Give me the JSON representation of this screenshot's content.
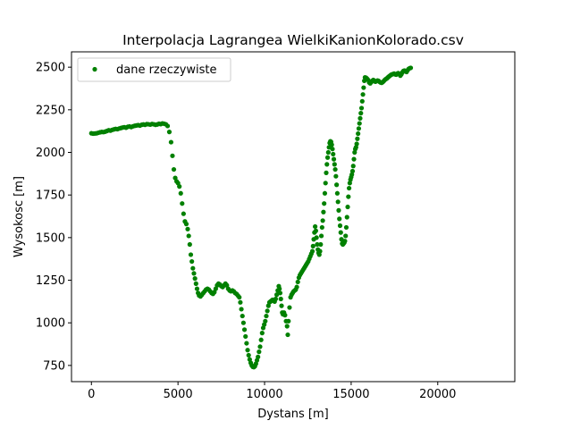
{
  "chart_data": {
    "type": "scatter",
    "title": "Interpolacja Lagrangea WielkiKanionKolorado.csv",
    "xlabel": "Dystans [m]",
    "ylabel": "Wysokosc [m]",
    "xlim": [
      -1150,
      24450
    ],
    "ylim": [
      655,
      2590
    ],
    "xticks": [
      0,
      5000,
      10000,
      15000,
      20000
    ],
    "yticks": [
      750,
      1000,
      1250,
      1500,
      1750,
      2000,
      2250,
      2500
    ],
    "grid": false,
    "legend_position": "upper-left",
    "marker_color": "#008000",
    "series": [
      {
        "name": "dane rzeczywiste",
        "color": "#008000",
        "points": [
          [
            0,
            2112
          ],
          [
            100,
            2110
          ],
          [
            200,
            2111
          ],
          [
            300,
            2112
          ],
          [
            400,
            2115
          ],
          [
            500,
            2118
          ],
          [
            600,
            2120
          ],
          [
            700,
            2119
          ],
          [
            800,
            2122
          ],
          [
            900,
            2126
          ],
          [
            1000,
            2130
          ],
          [
            1100,
            2128
          ],
          [
            1200,
            2132
          ],
          [
            1300,
            2135
          ],
          [
            1400,
            2138
          ],
          [
            1500,
            2136
          ],
          [
            1600,
            2140
          ],
          [
            1700,
            2143
          ],
          [
            1800,
            2146
          ],
          [
            1900,
            2148
          ],
          [
            2000,
            2145
          ],
          [
            2100,
            2150
          ],
          [
            2200,
            2152
          ],
          [
            2300,
            2149
          ],
          [
            2400,
            2153
          ],
          [
            2500,
            2156
          ],
          [
            2600,
            2158
          ],
          [
            2700,
            2160
          ],
          [
            2800,
            2157
          ],
          [
            2900,
            2162
          ],
          [
            3000,
            2164
          ],
          [
            3100,
            2162
          ],
          [
            3200,
            2166
          ],
          [
            3300,
            2165
          ],
          [
            3400,
            2163
          ],
          [
            3500,
            2167
          ],
          [
            3600,
            2165
          ],
          [
            3700,
            2162
          ],
          [
            3800,
            2164
          ],
          [
            3900,
            2168
          ],
          [
            4000,
            2166
          ],
          [
            4100,
            2170
          ],
          [
            4200,
            2168
          ],
          [
            4300,
            2165
          ],
          [
            4400,
            2155
          ],
          [
            4500,
            2120
          ],
          [
            4600,
            2060
          ],
          [
            4680,
            1980
          ],
          [
            4760,
            1900
          ],
          [
            4840,
            1850
          ],
          [
            4920,
            1830
          ],
          [
            5000,
            1820
          ],
          [
            5080,
            1800
          ],
          [
            5160,
            1760
          ],
          [
            5240,
            1700
          ],
          [
            5320,
            1640
          ],
          [
            5400,
            1595
          ],
          [
            5480,
            1580
          ],
          [
            5560,
            1550
          ],
          [
            5620,
            1510
          ],
          [
            5680,
            1460
          ],
          [
            5740,
            1400
          ],
          [
            5800,
            1360
          ],
          [
            5860,
            1320
          ],
          [
            5920,
            1290
          ],
          [
            5980,
            1260
          ],
          [
            6040,
            1230
          ],
          [
            6100,
            1200
          ],
          [
            6160,
            1175
          ],
          [
            6220,
            1160
          ],
          [
            6300,
            1155
          ],
          [
            6380,
            1165
          ],
          [
            6460,
            1175
          ],
          [
            6540,
            1185
          ],
          [
            6620,
            1195
          ],
          [
            6700,
            1200
          ],
          [
            6780,
            1195
          ],
          [
            6860,
            1185
          ],
          [
            6940,
            1175
          ],
          [
            7020,
            1170
          ],
          [
            7100,
            1180
          ],
          [
            7180,
            1200
          ],
          [
            7260,
            1220
          ],
          [
            7340,
            1230
          ],
          [
            7420,
            1225
          ],
          [
            7500,
            1215
          ],
          [
            7580,
            1210
          ],
          [
            7660,
            1220
          ],
          [
            7740,
            1230
          ],
          [
            7820,
            1220
          ],
          [
            7900,
            1200
          ],
          [
            7980,
            1190
          ],
          [
            8060,
            1185
          ],
          [
            8140,
            1190
          ],
          [
            8220,
            1185
          ],
          [
            8300,
            1175
          ],
          [
            8380,
            1170
          ],
          [
            8460,
            1160
          ],
          [
            8540,
            1150
          ],
          [
            8600,
            1120
          ],
          [
            8660,
            1080
          ],
          [
            8720,
            1040
          ],
          [
            8780,
            1000
          ],
          [
            8840,
            960
          ],
          [
            8900,
            920
          ],
          [
            8960,
            880
          ],
          [
            9020,
            840
          ],
          [
            9080,
            810
          ],
          [
            9140,
            785
          ],
          [
            9200,
            765
          ],
          [
            9260,
            750
          ],
          [
            9320,
            742
          ],
          [
            9380,
            740
          ],
          [
            9440,
            745
          ],
          [
            9500,
            760
          ],
          [
            9560,
            780
          ],
          [
            9620,
            800
          ],
          [
            9680,
            830
          ],
          [
            9740,
            860
          ],
          [
            9800,
            900
          ],
          [
            9860,
            940
          ],
          [
            9920,
            970
          ],
          [
            9980,
            990
          ],
          [
            10040,
            1010
          ],
          [
            10100,
            1040
          ],
          [
            10160,
            1070
          ],
          [
            10220,
            1100
          ],
          [
            10280,
            1120
          ],
          [
            10340,
            1125
          ],
          [
            10400,
            1130
          ],
          [
            10460,
            1135
          ],
          [
            10520,
            1130
          ],
          [
            10580,
            1125
          ],
          [
            10640,
            1140
          ],
          [
            10700,
            1165
          ],
          [
            10760,
            1190
          ],
          [
            10820,
            1215
          ],
          [
            10860,
            1200
          ],
          [
            10900,
            1175
          ],
          [
            10940,
            1140
          ],
          [
            10980,
            1100
          ],
          [
            11020,
            1060
          ],
          [
            11060,
            1050
          ],
          [
            11120,
            1060
          ],
          [
            11180,
            1045
          ],
          [
            11240,
            1010
          ],
          [
            11300,
            980
          ],
          [
            11340,
            930
          ],
          [
            11380,
            1010
          ],
          [
            11440,
            1090
          ],
          [
            11500,
            1150
          ],
          [
            11560,
            1165
          ],
          [
            11620,
            1175
          ],
          [
            11680,
            1185
          ],
          [
            11740,
            1190
          ],
          [
            11800,
            1195
          ],
          [
            11860,
            1210
          ],
          [
            11920,
            1240
          ],
          [
            11980,
            1265
          ],
          [
            12040,
            1280
          ],
          [
            12100,
            1290
          ],
          [
            12160,
            1300
          ],
          [
            12220,
            1310
          ],
          [
            12280,
            1320
          ],
          [
            12340,
            1330
          ],
          [
            12400,
            1340
          ],
          [
            12460,
            1350
          ],
          [
            12520,
            1360
          ],
          [
            12580,
            1375
          ],
          [
            12640,
            1390
          ],
          [
            12700,
            1405
          ],
          [
            12760,
            1420
          ],
          [
            12800,
            1450
          ],
          [
            12840,
            1490
          ],
          [
            12880,
            1530
          ],
          [
            12920,
            1565
          ],
          [
            12960,
            1540
          ],
          [
            13000,
            1500
          ],
          [
            13040,
            1460
          ],
          [
            13080,
            1430
          ],
          [
            13120,
            1410
          ],
          [
            13160,
            1400
          ],
          [
            13200,
            1420
          ],
          [
            13240,
            1460
          ],
          [
            13280,
            1510
          ],
          [
            13320,
            1560
          ],
          [
            13360,
            1600
          ],
          [
            13400,
            1650
          ],
          [
            13440,
            1700
          ],
          [
            13480,
            1760
          ],
          [
            13520,
            1820
          ],
          [
            13560,
            1880
          ],
          [
            13600,
            1930
          ],
          [
            13640,
            1970
          ],
          [
            13680,
            2000
          ],
          [
            13720,
            2030
          ],
          [
            13760,
            2055
          ],
          [
            13800,
            2065
          ],
          [
            13840,
            2062
          ],
          [
            13880,
            2045
          ],
          [
            13920,
            2020
          ],
          [
            13960,
            1990
          ],
          [
            14000,
            1960
          ],
          [
            14040,
            1930
          ],
          [
            14080,
            1900
          ],
          [
            14120,
            1860
          ],
          [
            14160,
            1810
          ],
          [
            14200,
            1760
          ],
          [
            14240,
            1710
          ],
          [
            14280,
            1660
          ],
          [
            14320,
            1610
          ],
          [
            14360,
            1570
          ],
          [
            14400,
            1530
          ],
          [
            14440,
            1490
          ],
          [
            14480,
            1465
          ],
          [
            14520,
            1460
          ],
          [
            14560,
            1465
          ],
          [
            14600,
            1470
          ],
          [
            14640,
            1480
          ],
          [
            14680,
            1510
          ],
          [
            14720,
            1560
          ],
          [
            14760,
            1620
          ],
          [
            14800,
            1680
          ],
          [
            14840,
            1740
          ],
          [
            14880,
            1790
          ],
          [
            14920,
            1820
          ],
          [
            14960,
            1840
          ],
          [
            15000,
            1855
          ],
          [
            15040,
            1870
          ],
          [
            15080,
            1890
          ],
          [
            15120,
            1920
          ],
          [
            15160,
            1960
          ],
          [
            15200,
            2000
          ],
          [
            15240,
            2020
          ],
          [
            15280,
            2030
          ],
          [
            15320,
            2050
          ],
          [
            15360,
            2080
          ],
          [
            15400,
            2110
          ],
          [
            15440,
            2140
          ],
          [
            15480,
            2170
          ],
          [
            15520,
            2200
          ],
          [
            15560,
            2230
          ],
          [
            15600,
            2260
          ],
          [
            15640,
            2300
          ],
          [
            15680,
            2340
          ],
          [
            15720,
            2380
          ],
          [
            15760,
            2420
          ],
          [
            15800,
            2440
          ],
          [
            15860,
            2438
          ],
          [
            15920,
            2432
          ],
          [
            15980,
            2425
          ],
          [
            16040,
            2410
          ],
          [
            16100,
            2405
          ],
          [
            16160,
            2412
          ],
          [
            16220,
            2420
          ],
          [
            16280,
            2425
          ],
          [
            16340,
            2420
          ],
          [
            16400,
            2415
          ],
          [
            16460,
            2418
          ],
          [
            16520,
            2422
          ],
          [
            16580,
            2420
          ],
          [
            16640,
            2414
          ],
          [
            16700,
            2410
          ],
          [
            16760,
            2408
          ],
          [
            16820,
            2412
          ],
          [
            16880,
            2418
          ],
          [
            16940,
            2425
          ],
          [
            17000,
            2430
          ],
          [
            17060,
            2434
          ],
          [
            17120,
            2440
          ],
          [
            17180,
            2445
          ],
          [
            17240,
            2450
          ],
          [
            17300,
            2455
          ],
          [
            17360,
            2458
          ],
          [
            17420,
            2460
          ],
          [
            17480,
            2462
          ],
          [
            17540,
            2458
          ],
          [
            17600,
            2456
          ],
          [
            17660,
            2462
          ],
          [
            17720,
            2465
          ],
          [
            17780,
            2460
          ],
          [
            17840,
            2450
          ],
          [
            17900,
            2458
          ],
          [
            17960,
            2470
          ],
          [
            18020,
            2478
          ],
          [
            18080,
            2480
          ],
          [
            18140,
            2476
          ],
          [
            18200,
            2472
          ],
          [
            18260,
            2482
          ],
          [
            18320,
            2490
          ],
          [
            18380,
            2494
          ],
          [
            18440,
            2496
          ]
        ]
      }
    ]
  }
}
